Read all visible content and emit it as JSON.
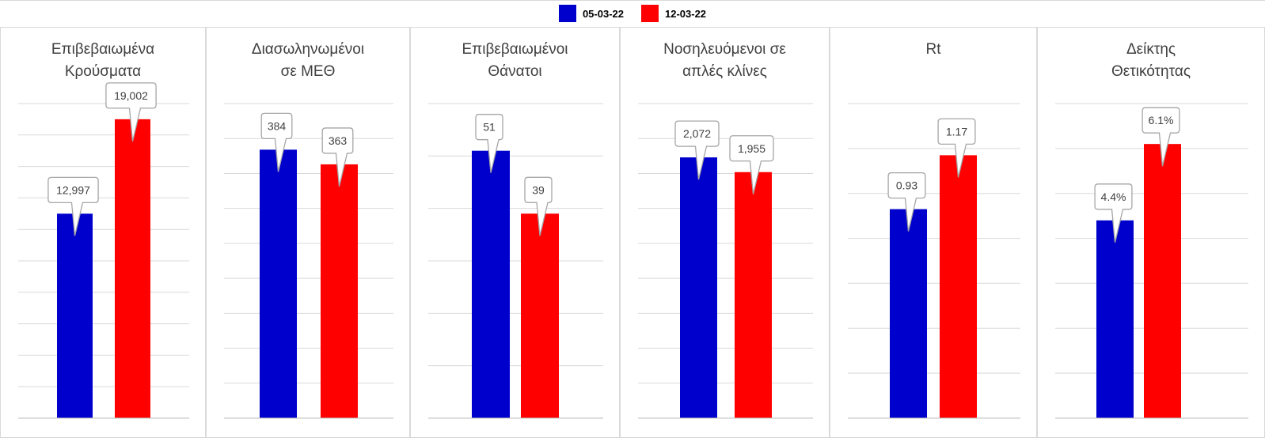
{
  "legend": [
    {
      "label": "05-03-22",
      "color": "#0000CC"
    },
    {
      "label": "12-03-22",
      "color": "#FF0000"
    }
  ],
  "chart_data": [
    {
      "type": "bar",
      "title": "Επιβεβαιωμένα\nΚρούσματα",
      "categories": [
        "05-03-22",
        "12-03-22"
      ],
      "values": [
        12997,
        19002
      ],
      "data_labels": [
        "12,997",
        "19,002"
      ],
      "ylim": [
        0,
        20000
      ],
      "grid": true
    },
    {
      "type": "bar",
      "title": "Διασωληνωμένοι\nσε ΜΕΘ",
      "categories": [
        "05-03-22",
        "12-03-22"
      ],
      "values": [
        384,
        363
      ],
      "data_labels": [
        "384",
        "363"
      ],
      "ylim": [
        0,
        450
      ],
      "grid": true
    },
    {
      "type": "bar",
      "title": "Επιβεβαιωμένοι\nΘάνατοι",
      "categories": [
        "05-03-22",
        "12-03-22"
      ],
      "values": [
        51,
        39
      ],
      "data_labels": [
        "51",
        "39"
      ],
      "ylim": [
        0,
        60
      ],
      "grid": true
    },
    {
      "type": "bar",
      "title": "Νοσηλευόμενοι σε\nαπλές κλίνες",
      "categories": [
        "05-03-22",
        "12-03-22"
      ],
      "values": [
        2072,
        1955
      ],
      "data_labels": [
        "2,072",
        "1,955"
      ],
      "ylim": [
        0,
        2500
      ],
      "grid": true
    },
    {
      "type": "bar",
      "title": "Rt",
      "categories": [
        "05-03-22",
        "12-03-22"
      ],
      "values": [
        0.93,
        1.17
      ],
      "data_labels": [
        "0.93",
        "1.17"
      ],
      "ylim": [
        0,
        1.4
      ],
      "grid": true
    },
    {
      "type": "bar",
      "title": "Δείκτης\nΘετικότητας",
      "categories": [
        "05-03-22",
        "12-03-22"
      ],
      "values": [
        4.4,
        6.1
      ],
      "data_labels": [
        "4.4%",
        "6.1%"
      ],
      "ylim": [
        0,
        7
      ],
      "grid": true
    }
  ]
}
